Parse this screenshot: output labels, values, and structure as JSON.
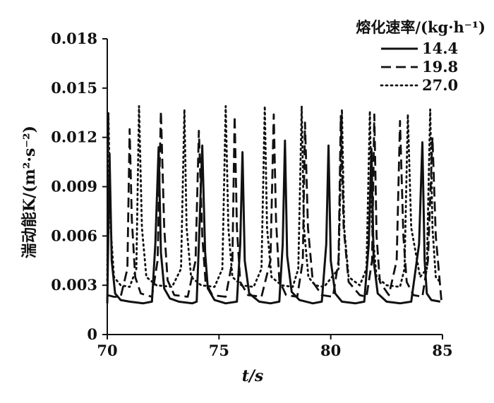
{
  "chart_data": {
    "type": "line",
    "xlabel": "t/s",
    "ylabel": "湍动能K/(m²·s⁻²)",
    "xlim": [
      70,
      85
    ],
    "ylim": [
      0,
      0.018
    ],
    "xticks": [
      "70",
      "75",
      "80",
      "85"
    ],
    "yticks": [
      "0",
      "0.003",
      "0.006",
      "0.009",
      "0.012",
      "0.015",
      "0.018"
    ],
    "legend_title": "熔化速率/(kg·h⁻¹)",
    "legend_position": "top-right",
    "grid": false,
    "series": [
      {
        "name": "14.4",
        "style": "solid",
        "color": "#111111",
        "x": [
          70.0,
          70.1,
          70.2,
          70.35,
          70.6,
          71.0,
          71.6,
          72.0,
          72.15,
          72.3,
          72.4,
          72.55,
          72.8,
          73.2,
          73.8,
          74.0,
          74.1,
          74.25,
          74.38,
          74.5,
          74.8,
          75.3,
          75.8,
          75.95,
          76.05,
          76.15,
          76.35,
          76.8,
          77.3,
          77.7,
          77.85,
          77.95,
          78.05,
          78.25,
          78.6,
          79.2,
          79.6,
          79.8,
          79.9,
          80.0,
          80.2,
          80.5,
          81.1,
          81.5,
          81.7,
          81.82,
          81.92,
          82.1,
          82.5,
          83.1,
          83.6,
          83.95,
          84.1,
          84.2,
          84.3,
          84.5,
          84.9
        ],
        "y": [
          0.0019,
          0.011,
          0.0045,
          0.0025,
          0.0021,
          0.002,
          0.0019,
          0.002,
          0.0055,
          0.0114,
          0.005,
          0.0028,
          0.0022,
          0.002,
          0.0019,
          0.002,
          0.0055,
          0.0115,
          0.005,
          0.0028,
          0.0021,
          0.0019,
          0.002,
          0.0055,
          0.0111,
          0.0045,
          0.0025,
          0.002,
          0.0019,
          0.002,
          0.0055,
          0.0118,
          0.0048,
          0.0026,
          0.0021,
          0.0019,
          0.002,
          0.0055,
          0.0115,
          0.0045,
          0.0025,
          0.002,
          0.0019,
          0.002,
          0.0055,
          0.0113,
          0.0045,
          0.0025,
          0.002,
          0.0019,
          0.002,
          0.0055,
          0.0117,
          0.0045,
          0.0025,
          0.0021,
          0.002
        ]
      },
      {
        "name": "19.8",
        "style": "dashed",
        "color": "#111111",
        "x": [
          70.0,
          70.3,
          70.6,
          70.9,
          71.0,
          71.1,
          71.25,
          71.5,
          72.0,
          72.25,
          72.4,
          72.55,
          72.7,
          73.0,
          73.6,
          73.95,
          74.1,
          74.25,
          74.4,
          74.7,
          75.3,
          75.6,
          75.7,
          75.8,
          75.95,
          76.3,
          76.9,
          77.3,
          77.45,
          77.55,
          77.7,
          78.0,
          78.5,
          78.75,
          78.85,
          78.98,
          79.2,
          79.6,
          80.1,
          80.35,
          80.45,
          80.58,
          80.8,
          81.3,
          81.6,
          81.85,
          81.95,
          82.05,
          82.2,
          82.6,
          82.95,
          83.1,
          83.25,
          83.4,
          83.7,
          84.1,
          84.35,
          84.55,
          84.7,
          84.95
        ],
        "y": [
          0.0024,
          0.0023,
          0.0023,
          0.004,
          0.0125,
          0.007,
          0.0035,
          0.0025,
          0.0023,
          0.0045,
          0.0136,
          0.0065,
          0.0033,
          0.0024,
          0.0023,
          0.0045,
          0.0124,
          0.006,
          0.0032,
          0.0024,
          0.0023,
          0.0045,
          0.0133,
          0.0065,
          0.0032,
          0.0024,
          0.0023,
          0.0045,
          0.0134,
          0.007,
          0.0033,
          0.0024,
          0.0023,
          0.0045,
          0.0129,
          0.0065,
          0.0032,
          0.0024,
          0.0023,
          0.0045,
          0.0133,
          0.0065,
          0.0032,
          0.0024,
          0.0023,
          0.0045,
          0.0134,
          0.006,
          0.0032,
          0.0024,
          0.0045,
          0.013,
          0.006,
          0.0032,
          0.0024,
          0.0023,
          0.0045,
          0.012,
          0.006,
          0.0021
        ]
      },
      {
        "name": "27.0",
        "style": "dotted",
        "color": "#111111",
        "x": [
          70.0,
          70.05,
          70.15,
          70.3,
          70.6,
          71.0,
          71.3,
          71.42,
          71.55,
          71.75,
          72.2,
          72.9,
          73.3,
          73.45,
          73.55,
          73.75,
          74.2,
          74.8,
          75.15,
          75.3,
          75.42,
          75.6,
          76.0,
          76.55,
          76.9,
          77.05,
          77.15,
          77.35,
          77.8,
          78.3,
          78.55,
          78.7,
          78.8,
          79.0,
          79.3,
          79.7,
          80.35,
          80.5,
          80.6,
          80.8,
          81.3,
          81.6,
          81.75,
          81.85,
          82.05,
          82.5,
          83.1,
          83.3,
          83.45,
          83.6,
          84.0,
          84.3,
          84.45,
          84.55,
          84.7,
          84.95
        ],
        "y": [
          0.0033,
          0.0135,
          0.0065,
          0.0035,
          0.003,
          0.0029,
          0.004,
          0.0139,
          0.0065,
          0.0035,
          0.003,
          0.0029,
          0.004,
          0.0137,
          0.0065,
          0.0035,
          0.003,
          0.0029,
          0.004,
          0.0139,
          0.0065,
          0.0035,
          0.003,
          0.0029,
          0.004,
          0.0139,
          0.0065,
          0.0035,
          0.003,
          0.0029,
          0.004,
          0.0139,
          0.0065,
          0.0035,
          0.003,
          0.0029,
          0.004,
          0.0137,
          0.0065,
          0.0035,
          0.003,
          0.004,
          0.0136,
          0.0065,
          0.0035,
          0.003,
          0.0029,
          0.004,
          0.0134,
          0.0065,
          0.0035,
          0.004,
          0.0137,
          0.0065,
          0.0035,
          0.0031
        ]
      }
    ]
  }
}
